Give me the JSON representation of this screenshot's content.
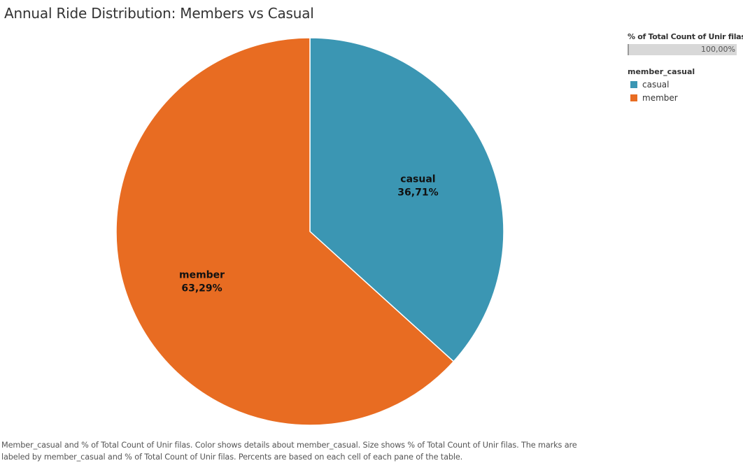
{
  "title": "Annual Ride Distribution: Members vs Casual",
  "chart_data": {
    "type": "pie",
    "title": "Annual Ride Distribution: Members vs Casual",
    "slices": [
      {
        "label": "casual",
        "value": 36.71,
        "display": "36,71%",
        "color": "#3b96b3"
      },
      {
        "label": "member",
        "value": 63.29,
        "display": "63,29%",
        "color": "#e86c22"
      }
    ],
    "start": "12 o'clock",
    "direction": "clockwise"
  },
  "legend": {
    "size_title": "% of Total Count of Unir filas",
    "size_value": "100,00%",
    "color_title": "member_casual",
    "items": [
      {
        "label": "casual",
        "color": "#3b96b3"
      },
      {
        "label": "member",
        "color": "#e86c22"
      }
    ]
  },
  "caption": "Member_casual and % of Total Count of Unir filas.  Color shows details about member_casual.  Size shows % of Total Count of Unir filas.  The marks are labeled by member_casual and % of Total Count of Unir filas. Percents are based on each cell of each pane of the table."
}
